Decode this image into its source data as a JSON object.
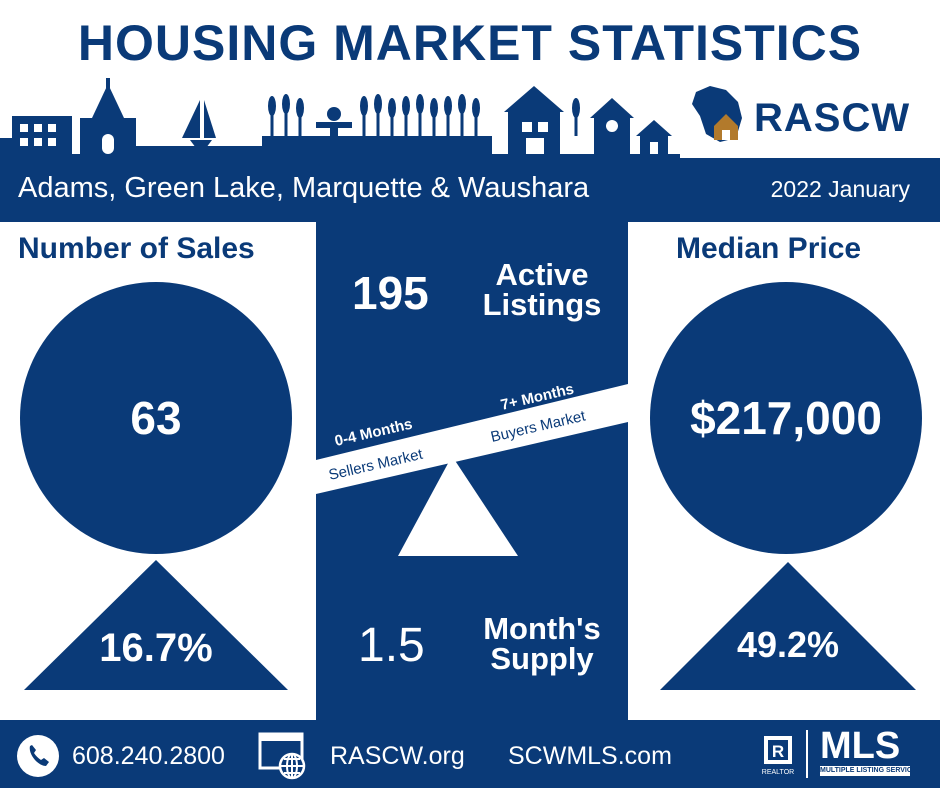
{
  "header": {
    "title": "HOUSING MARKET STATISTICS",
    "logo_text": "RASCW"
  },
  "band": {
    "region": "Adams, Green Lake, Marquette & Waushara",
    "period": "2022 January"
  },
  "sales": {
    "title": "Number of Sales",
    "value": "63",
    "change": "16.7%"
  },
  "price": {
    "title": "Median Price",
    "value": "$217,000",
    "change": "49.2%"
  },
  "listings": {
    "value": "195",
    "label_line1": "Active",
    "label_line2": "Listings"
  },
  "scale": {
    "left_top": "0-4 Months",
    "left_bottom": "Sellers Market",
    "right_top": "7+ Months",
    "right_bottom": "Buyers Market"
  },
  "supply": {
    "value": "1.5",
    "label_line1": "Month's",
    "label_line2": "Supply"
  },
  "footer": {
    "phone": "608.240.2800",
    "site1": "RASCW.org",
    "site2": "SCWMLS.com",
    "mls_text": "MLS",
    "mls_sub": "MULTIPLE LISTING SERVICE",
    "realtor_text": "REALTOR"
  },
  "colors": {
    "navy": "#0a3a78",
    "white": "#ffffff",
    "gold": "#b27a2c"
  },
  "icons": [
    "church-icon",
    "sailboat-icon",
    "wheat-icon",
    "scarecrow-icon",
    "barn-icon",
    "house-icon",
    "wisconsin-map-icon",
    "phone-icon",
    "web-icon",
    "realtor-icon"
  ]
}
